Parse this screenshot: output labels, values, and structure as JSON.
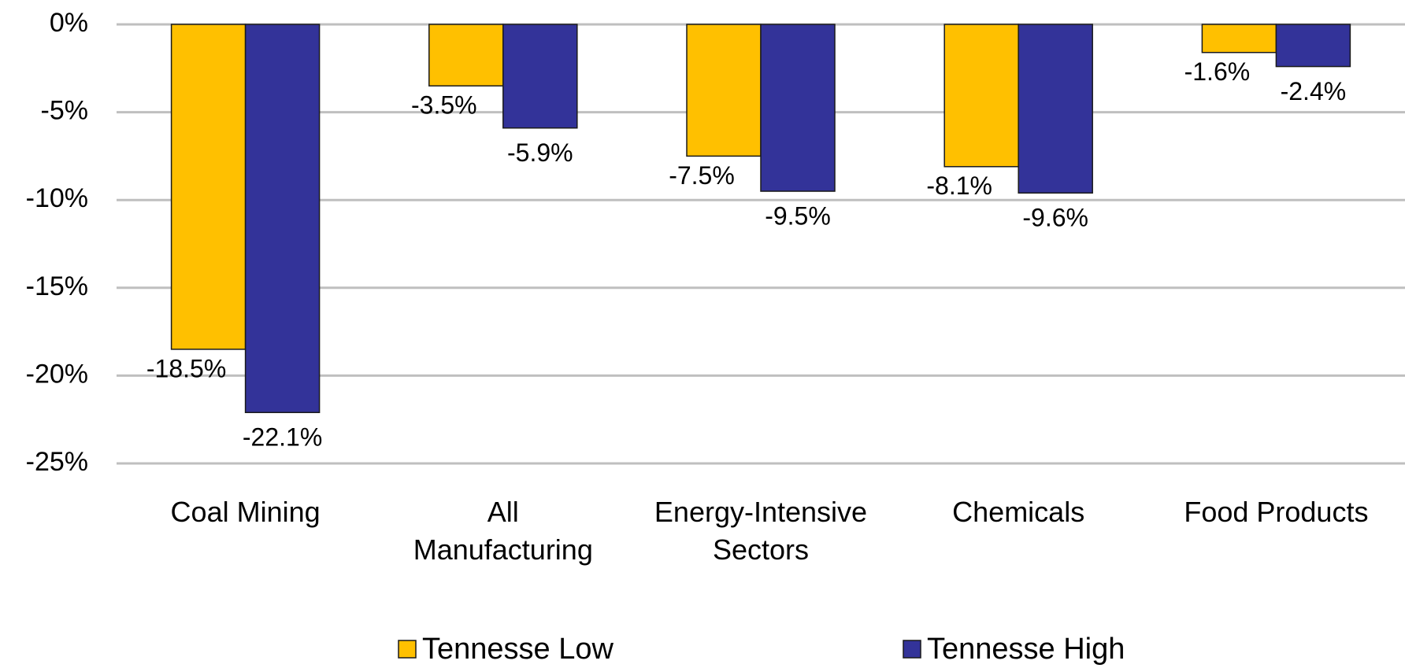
{
  "chart_data": {
    "type": "bar",
    "categories": [
      "Coal Mining",
      "All\nManufacturing",
      "Energy-Intensive\nSectors",
      "Chemicals",
      "Food Products"
    ],
    "series": [
      {
        "name": "Tennesse Low",
        "color": "#FFC000",
        "values": [
          -18.5,
          -3.5,
          -7.5,
          -8.1,
          -1.6
        ],
        "value_labels": [
          "-18.5%",
          "-3.5%",
          "-7.5%",
          "-8.1%",
          "-1.6%"
        ]
      },
      {
        "name": "Tennesse High",
        "color": "#333399",
        "values": [
          -22.1,
          -5.9,
          -9.5,
          -9.6,
          -2.4
        ],
        "value_labels": [
          "-22.1%",
          "-5.9%",
          "-9.5%",
          "-9.6%",
          "-2.4%"
        ]
      }
    ],
    "ylim": [
      -25,
      0
    ],
    "yticks": [
      {
        "value": 0,
        "label": "0%"
      },
      {
        "value": -5,
        "label": "-5%"
      },
      {
        "value": -10,
        "label": "-10%"
      },
      {
        "value": -15,
        "label": "-15%"
      },
      {
        "value": -20,
        "label": "-20%"
      },
      {
        "value": -25,
        "label": "-25%"
      }
    ],
    "grid": true,
    "legend": "bottom"
  }
}
